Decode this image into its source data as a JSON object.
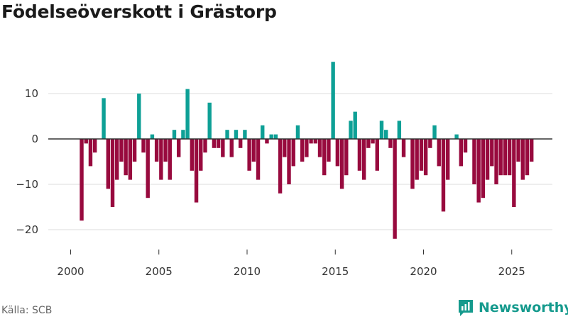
{
  "title": "Födelseöverskott i Grästorp",
  "source": "Källa: SCB",
  "brand": {
    "name": "Newsworthy",
    "icon": "newsworthy-logo-icon"
  },
  "colors": {
    "positive": "#0ea096",
    "negative": "#980a3e",
    "grid": "#dddddd",
    "zero": "#333333"
  },
  "chart_data": {
    "type": "bar",
    "title": "Födelseöverskott i Grästorp",
    "xlabel": "",
    "ylabel": "",
    "frequency": "quarterly",
    "x_start": "2000-Q3",
    "xlim": [
      1998.8,
      2027.3
    ],
    "ylim": [
      -24,
      19
    ],
    "y_ticks": [
      -20,
      -10,
      0,
      10
    ],
    "x_ticks": [
      2000,
      2005,
      2010,
      2015,
      2020,
      2025
    ],
    "grid": true,
    "legend": "none",
    "values": [
      -18,
      -1,
      -6,
      -3,
      0,
      9,
      -11,
      -15,
      -9,
      -5,
      -8,
      -9,
      -5,
      10,
      -3,
      -13,
      1,
      -5,
      -9,
      -5,
      -9,
      2,
      -4,
      2,
      11,
      -7,
      -14,
      -7,
      -3,
      8,
      -2,
      -2,
      -4,
      2,
      -4,
      2,
      -2,
      2,
      -7,
      -5,
      -9,
      3,
      -1,
      1,
      1,
      -12,
      -4,
      -10,
      -6,
      3,
      -5,
      -4,
      -1,
      -1,
      -4,
      -8,
      -5,
      17,
      -6,
      -11,
      -8,
      4,
      6,
      -7,
      -9,
      -2,
      -1,
      -7,
      4,
      2,
      -2,
      -22,
      4,
      -4,
      0,
      -11,
      -9,
      -7,
      -8,
      -2,
      3,
      -6,
      -16,
      -9,
      0,
      1,
      -6,
      -3,
      0,
      -10,
      -14,
      -13,
      -9,
      -6,
      -10,
      -8,
      -8,
      -8,
      -15,
      -5,
      -9,
      -8,
      -5
    ]
  }
}
